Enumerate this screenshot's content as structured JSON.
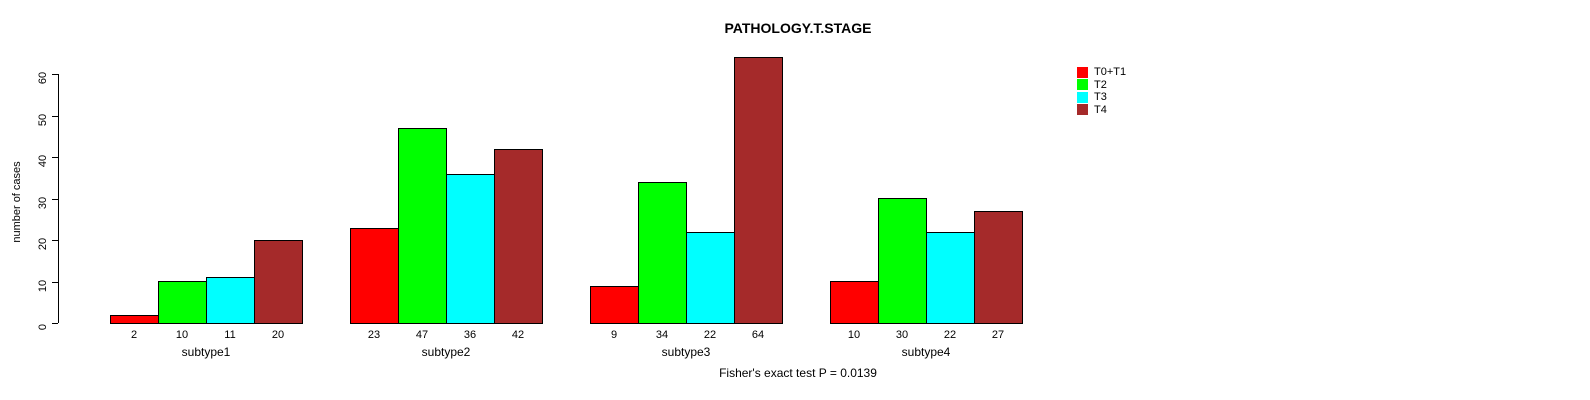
{
  "title": "PATHOLOGY.T.STAGE",
  "caption": "Fisher's exact test P = 0.0139",
  "chart_data": {
    "type": "bar",
    "title": "PATHOLOGY.T.STAGE",
    "subtitle": "Fisher's exact test P = 0.0139",
    "categories": [
      "subtype1",
      "subtype2",
      "subtype3",
      "subtype4"
    ],
    "series": [
      {
        "name": "T0+T1",
        "color": "#FF0000",
        "values": [
          2,
          23,
          9,
          10
        ]
      },
      {
        "name": "T2",
        "color": "#00FF00",
        "values": [
          10,
          47,
          34,
          30
        ]
      },
      {
        "name": "T3",
        "color": "#00FFFF",
        "values": [
          11,
          36,
          22,
          22
        ]
      },
      {
        "name": "T4",
        "color": "#A52A2A",
        "values": [
          20,
          42,
          64,
          27
        ]
      }
    ],
    "xlabel": "",
    "ylabel": "number of cases",
    "yticks": [
      0,
      10,
      20,
      30,
      40,
      50,
      60
    ],
    "ylim": [
      0,
      64
    ],
    "grid": false,
    "bar_value_labels": true,
    "legend_position": "top-right",
    "legend": [
      {
        "label": "T0+T1",
        "color": "#FF0000"
      },
      {
        "label": "T2",
        "color": "#00FF00"
      },
      {
        "label": "T3",
        "color": "#00FFFF"
      },
      {
        "label": "T4",
        "color": "#A52A2A"
      }
    ]
  }
}
